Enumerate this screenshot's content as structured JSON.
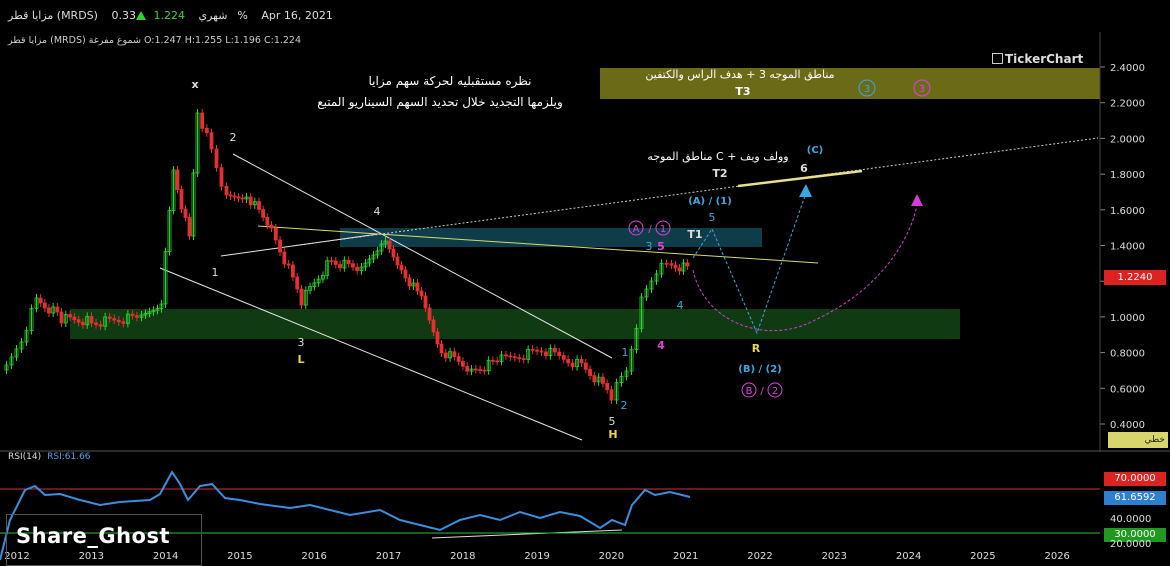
{
  "header": {
    "symbol_name": "مزايا قطر (MRDS)",
    "period": "شهري",
    "last_price": "1.224",
    "change_pct": "0.33%",
    "date": "Apr 16, 2021",
    "ohlc_line": "مزايا قطر (MRDS) شموع مفرغة O:1.247 H:1.255 L:1.196 C:1.224"
  },
  "brand": "TickerChart",
  "price_axis": {
    "ticks": [
      "2.4000",
      "2.2000",
      "2.0000",
      "1.8000",
      "1.6000",
      "1.4000",
      "1.2000",
      "1.0000",
      "0.8000",
      "0.6000",
      "0.4000"
    ],
    "current_price_label": "1.2240",
    "mode_button": "خطي"
  },
  "time_axis": [
    "2012",
    "2013",
    "2014",
    "2015",
    "2016",
    "2017",
    "2018",
    "2019",
    "2020",
    "2021",
    "2022",
    "2023",
    "2024",
    "2025",
    "2026"
  ],
  "annotations": {
    "title_line1": "نظره مستقبليه لحركة سهم مزايا",
    "title_line2": "ويلزمها التجديد خلال تحديد السهم السيناريو المتبع",
    "t3_zone_text": "مناطق الموجه 3 + هدف الراس والكتفين",
    "t3_label": "T3",
    "t2_text": "مناطق الموجه  C  + وولف ويف",
    "t2_label": "T2",
    "t1_label": "T1",
    "wave_x": "x",
    "wave_2": "2",
    "wave_1": "1",
    "wave_4": "4",
    "wave_3": "3",
    "wave_L": "L",
    "wave_5": "5",
    "wave_H": "H",
    "wave_1b": "1",
    "wave_2b": "2",
    "wave_A1": "(A) / (1)",
    "wave_C": "(C)",
    "wave_6": "6",
    "wave_5c": "5",
    "wave_3c": "3",
    "wave_5m": "5",
    "wave_4c": "4",
    "wave_4m": "4",
    "wave_R": "R",
    "wave_B2": "(B) / (2)",
    "circ_A": "A",
    "circ_1": "1",
    "circ_3": "3",
    "circ_3m": "3",
    "circ_B": "B",
    "circ_2": "2",
    "slash": "/"
  },
  "rsi": {
    "label": "RSI(14)",
    "value_label": "RSI:61.66",
    "ticks": [
      "40.0000",
      "20.0000"
    ],
    "upper_level": "70.0000",
    "current": "61.6592",
    "lower_level": "30.0000"
  },
  "watermark": "Share_Ghost",
  "colors": {
    "up_candle": "#2bd42b",
    "down_candle": "#e33030",
    "resistance_zone": "#0e3d49",
    "support_zone": "#0f3a12",
    "t3_zone": "#6b6a17",
    "rsi_line": "#3a8fe0"
  }
}
